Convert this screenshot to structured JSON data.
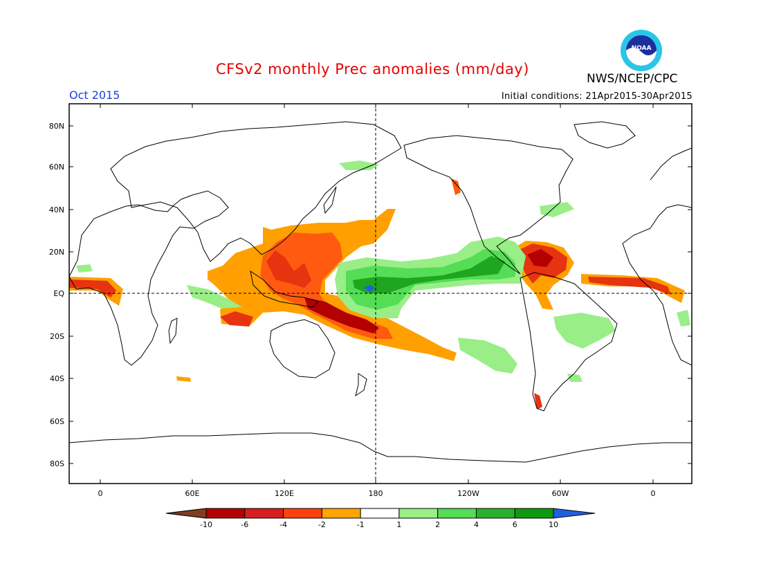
{
  "header": {
    "title": "CFSv2 monthly Prec anomalies (mm/day)",
    "organization": "NWS/NCEP/CPC",
    "logo_text": "NOAA",
    "month": "Oct 2015",
    "initial_conditions": "Initial conditions: 21Apr2015-30Apr2015"
  },
  "axes": {
    "lat_labels": [
      "80N",
      "60N",
      "40N",
      "20N",
      "EQ",
      "20S",
      "40S",
      "60S",
      "80S"
    ],
    "lon_labels": [
      "0",
      "60E",
      "120E",
      "180",
      "120W",
      "60W",
      "0"
    ]
  },
  "colorbar": {
    "labels": [
      "-10",
      "-6",
      "-4",
      "-2",
      "-1",
      "1",
      "2",
      "4",
      "6",
      "10"
    ],
    "colors": [
      "#7f3f1f",
      "#b30000",
      "#d81e1e",
      "#ff4010",
      "#ffa500",
      "#ffffff",
      "#99ee88",
      "#55dd55",
      "#2ab02a",
      "#0e9a0e",
      "#2060e0"
    ]
  },
  "colors": {
    "dry_strong": "#b30000",
    "dry": "#e63310",
    "dry_moderate": "#ff5a10",
    "dry_weak": "#ffa000",
    "wet_weak": "#99ee88",
    "wet": "#55dd55",
    "wet_strong": "#1fa51f",
    "wet_extreme": "#2060e0"
  }
}
